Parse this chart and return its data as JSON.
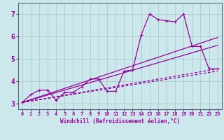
{
  "xlabel": "Windchill (Refroidissement éolien,°C)",
  "bg_color": "#cce8ed",
  "grid_color": "#aacccc",
  "line_color": "#990099",
  "spine_color": "#556677",
  "xlim": [
    -0.5,
    23.5
  ],
  "ylim": [
    2.75,
    7.5
  ],
  "yticks": [
    3,
    4,
    5,
    6,
    7
  ],
  "xticks": [
    0,
    1,
    2,
    3,
    4,
    5,
    6,
    7,
    8,
    9,
    10,
    11,
    12,
    13,
    14,
    15,
    16,
    17,
    18,
    19,
    20,
    21,
    22,
    23
  ],
  "line1_x": [
    0,
    1,
    2,
    3,
    4,
    5,
    6,
    7,
    8,
    9,
    10,
    11,
    12,
    13,
    14,
    15,
    16,
    17,
    18,
    19,
    20,
    21,
    22,
    23
  ],
  "line1_y": [
    3.05,
    3.4,
    3.6,
    3.6,
    3.15,
    3.5,
    3.5,
    3.75,
    4.1,
    4.1,
    3.55,
    3.55,
    4.45,
    4.5,
    6.05,
    7.0,
    6.75,
    6.7,
    6.65,
    7.0,
    5.55,
    5.55,
    4.55,
    4.55
  ],
  "line2_x": [
    0,
    23
  ],
  "line2_y": [
    3.05,
    5.95
  ],
  "line3_x": [
    0,
    23
  ],
  "line3_y": [
    3.05,
    5.6
  ],
  "line4_x": [
    0,
    23
  ],
  "line4_y": [
    3.05,
    4.55
  ],
  "line5_x": [
    0,
    23
  ],
  "line5_y": [
    3.05,
    4.45
  ]
}
